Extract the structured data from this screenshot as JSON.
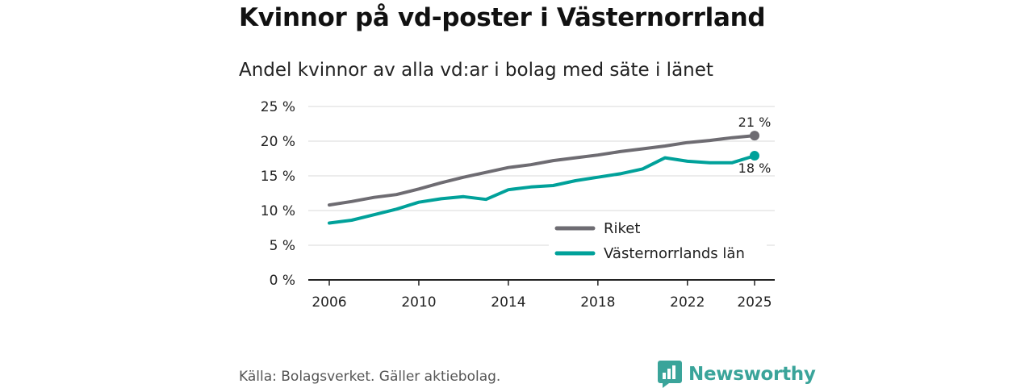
{
  "chart_data": {
    "type": "line",
    "title": "Kvinnor på vd-poster i Västernorrland",
    "subtitle": "Andel kvinnor av alla vd:ar i bolag med säte i länet",
    "xlabel": "",
    "ylabel": "",
    "x": [
      2006,
      2007,
      2008,
      2009,
      2010,
      2011,
      2012,
      2013,
      2014,
      2015,
      2016,
      2017,
      2018,
      2019,
      2020,
      2021,
      2022,
      2023,
      2024,
      2025
    ],
    "x_ticks": [
      2006,
      2010,
      2014,
      2018,
      2022,
      2025
    ],
    "y_ticks": [
      0,
      5,
      10,
      15,
      20,
      25
    ],
    "y_tick_suffix": " %",
    "ylim": [
      0,
      25
    ],
    "grid": true,
    "legend_position": "lower-right",
    "series": [
      {
        "name": "Riket",
        "color": "#6e6c72",
        "values": [
          10.8,
          11.3,
          11.9,
          12.3,
          13.1,
          14.0,
          14.8,
          15.5,
          16.2,
          16.6,
          17.2,
          17.6,
          18.0,
          18.5,
          18.9,
          19.3,
          19.8,
          20.1,
          20.5,
          20.8
        ],
        "end_label": "21 %"
      },
      {
        "name": "Västernorrlands län",
        "color": "#00a19a",
        "values": [
          8.2,
          8.6,
          9.4,
          10.2,
          11.2,
          11.7,
          12.0,
          11.6,
          13.0,
          13.4,
          13.6,
          14.3,
          14.8,
          15.3,
          16.0,
          17.6,
          17.1,
          16.9,
          16.9,
          17.9
        ],
        "end_label": "18 %"
      }
    ]
  },
  "source": "Källa: Bolagsverket. Gäller aktiebolag.",
  "brand": {
    "name": "Newsworthy",
    "color": "#3aa49a",
    "icon": "newsworthy-logo-icon"
  }
}
